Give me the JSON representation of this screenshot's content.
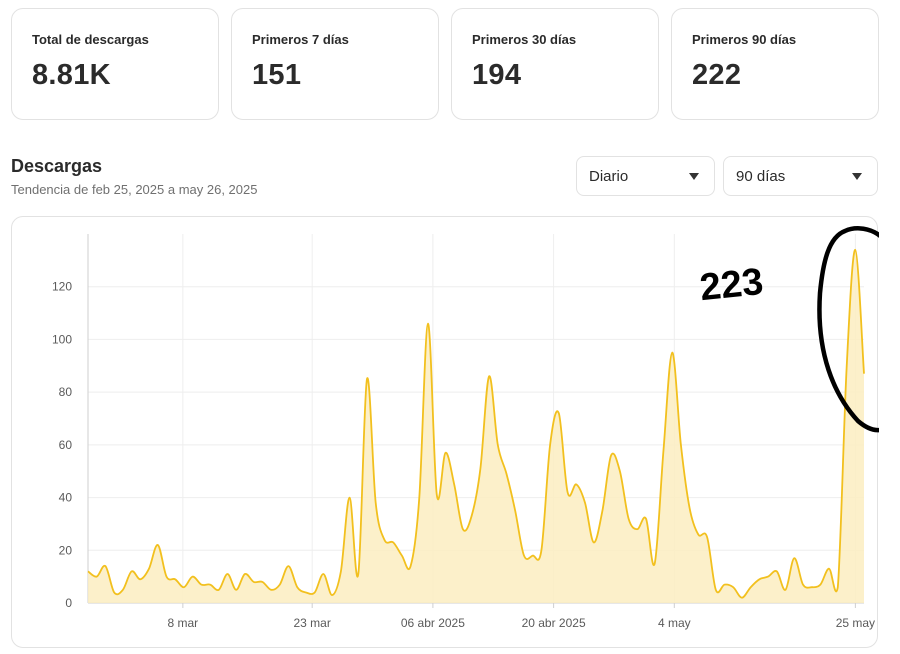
{
  "stats": [
    {
      "label": "Total de descargas",
      "value": "8.81K"
    },
    {
      "label": "Primeros 7 días",
      "value": "151"
    },
    {
      "label": "Primeros 30 días",
      "value": "194"
    },
    {
      "label": "Primeros 90 días",
      "value": "222"
    }
  ],
  "section": {
    "title": "Descargas",
    "subtitle": "Tendencia de feb 25, 2025 a may 26, 2025"
  },
  "controls": {
    "interval": "Diario",
    "range": "90 días"
  },
  "colors": {
    "line": "#f2c01e",
    "fill": "#fbedc1",
    "grid": "#eeeeee",
    "axis": "#cfcfcf",
    "annotation": "#000000"
  },
  "annotation": {
    "text": "223"
  },
  "chart_data": {
    "type": "area",
    "x_ticks": [
      "8 mar",
      "23 mar",
      "06 abr 2025",
      "20 abr 2025",
      "4 may",
      "25 may"
    ],
    "y_ticks": [
      0,
      20,
      40,
      60,
      80,
      100,
      120
    ],
    "ylim": [
      0,
      140
    ],
    "grid": true,
    "series": [
      {
        "values": [
          12,
          10,
          14,
          4,
          5,
          12,
          9,
          13,
          22,
          10,
          9,
          6,
          10,
          7,
          7,
          5,
          11,
          5,
          11,
          8,
          8,
          5,
          7,
          14,
          6,
          4,
          4,
          11,
          3,
          12,
          40,
          11,
          85,
          38,
          24,
          23,
          18,
          14,
          40,
          106,
          41,
          57,
          45,
          28,
          33,
          51,
          86,
          60,
          49,
          35,
          18,
          18,
          20,
          60,
          72,
          42,
          45,
          38,
          23,
          35,
          56,
          50,
          32,
          28,
          32,
          15,
          58,
          95,
          60,
          36,
          26,
          25,
          5,
          7,
          6,
          2,
          6,
          9,
          10,
          12,
          5,
          17,
          7,
          6,
          7,
          13,
          6,
          89,
          134,
          87
        ]
      }
    ]
  }
}
